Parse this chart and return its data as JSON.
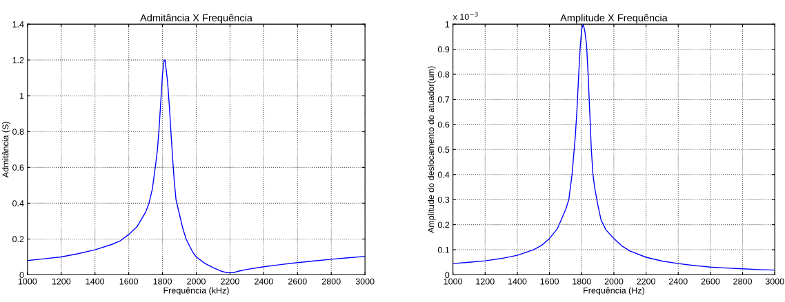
{
  "chart_data": [
    {
      "type": "line",
      "title": "Admitância X Frequência",
      "xlabel": "Frequência (kHz)",
      "ylabel": "Admitância (S)",
      "x": [
        1000,
        1100,
        1200,
        1300,
        1400,
        1500,
        1550,
        1600,
        1650,
        1700,
        1720,
        1740,
        1760,
        1770,
        1780,
        1790,
        1800,
        1810,
        1815,
        1830,
        1840,
        1850,
        1860,
        1870,
        1880,
        1900,
        1920,
        1940,
        1980,
        2000,
        2050,
        2100,
        2150,
        2180,
        2220,
        2250,
        2300,
        2400,
        2500,
        2600,
        2700,
        2800,
        2900,
        3000
      ],
      "series": [
        {
          "color": "#0000ff",
          "values": [
            0.08,
            0.09,
            0.1,
            0.118,
            0.14,
            0.17,
            0.19,
            0.225,
            0.27,
            0.35,
            0.4,
            0.48,
            0.62,
            0.7,
            0.82,
            0.97,
            1.12,
            1.2,
            1.2,
            1.08,
            0.95,
            0.8,
            0.65,
            0.52,
            0.42,
            0.34,
            0.26,
            0.2,
            0.125,
            0.1,
            0.065,
            0.04,
            0.02,
            0.012,
            0.012,
            0.02,
            0.03,
            0.045,
            0.057,
            0.068,
            0.078,
            0.087,
            0.095,
            0.103
          ]
        }
      ],
      "xlim": [
        1000,
        3000
      ],
      "xticks": [
        1000,
        1200,
        1400,
        1600,
        1800,
        2000,
        2200,
        2400,
        2600,
        2800,
        3000
      ],
      "ylim": [
        0,
        1.4
      ],
      "yticks": [
        0,
        0.2,
        0.4,
        0.6,
        0.8,
        1,
        1.2,
        1.4
      ],
      "grid": true,
      "line_style": "solid",
      "legend": false
    },
    {
      "type": "line",
      "title": "Amplitude X Frequência",
      "xlabel": "Frequência (Hz)",
      "ylabel": "Amplitude do deslocamento do atuador(um)",
      "annotations": [
        "x 10$^{−3}$"
      ],
      "x": [
        1000,
        1100,
        1200,
        1300,
        1400,
        1500,
        1550,
        1600,
        1650,
        1700,
        1720,
        1740,
        1760,
        1770,
        1780,
        1790,
        1800,
        1810,
        1820,
        1830,
        1840,
        1850,
        1860,
        1870,
        1880,
        1900,
        1920,
        1950,
        2000,
        2050,
        2100,
        2200,
        2300,
        2400,
        2500,
        2600,
        2700,
        2800,
        2900,
        3000
      ],
      "series": [
        {
          "color": "#0000ff",
          "values": [
            0.045,
            0.05,
            0.056,
            0.065,
            0.078,
            0.1,
            0.117,
            0.145,
            0.185,
            0.26,
            0.3,
            0.4,
            0.55,
            0.65,
            0.78,
            0.9,
            0.98,
            1,
            0.97,
            0.92,
            0.8,
            0.65,
            0.5,
            0.4,
            0.35,
            0.28,
            0.22,
            0.18,
            0.145,
            0.115,
            0.095,
            0.07,
            0.055,
            0.045,
            0.037,
            0.031,
            0.027,
            0.024,
            0.021,
            0.019
          ]
        }
      ],
      "xlim": [
        1000,
        3000
      ],
      "xticks": [
        1000,
        1200,
        1400,
        1600,
        1800,
        2000,
        2200,
        2400,
        2600,
        2800,
        3000
      ],
      "ylim": [
        0,
        1
      ],
      "yticks": [
        0,
        0.1,
        0.2,
        0.3,
        0.4,
        0.5,
        0.6,
        0.7,
        0.8,
        0.9,
        1
      ],
      "grid": true,
      "line_style": "solid",
      "legend": false
    }
  ]
}
